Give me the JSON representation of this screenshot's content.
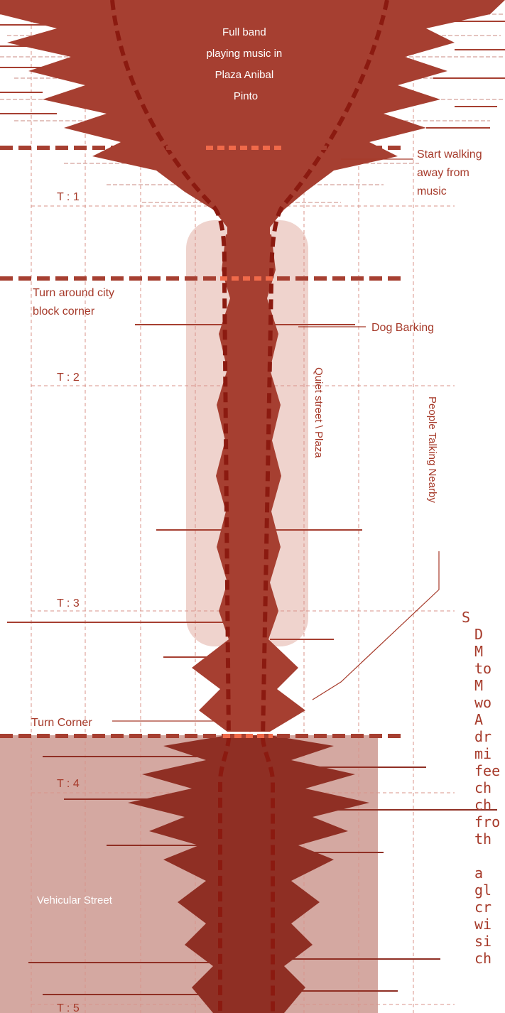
{
  "colors": {
    "wave": "#a63f31",
    "wave_dark": "#8a2a20",
    "guide": "#8b1a10",
    "highlight": "#f06a4a",
    "label": "#a63a2a",
    "grid": "#d9938a",
    "vehicular": "#d4a8a1",
    "plaza_fill": "#e9c2bb"
  },
  "labels": {
    "band": [
      "Full band",
      "playing music in",
      "Plaza Anibal",
      "Pinto"
    ],
    "start_walking": [
      "Start walking",
      "away from",
      "music"
    ],
    "turn_block": [
      "Turn around city",
      "block corner"
    ],
    "dog": "Dog Barking",
    "quiet": "Quiet street \\ Plaza",
    "people": "People Talking Nearby",
    "turn_corner": "Turn Corner",
    "vehicular": "Vehicular Street"
  },
  "time_markers": [
    "T : 1",
    "T : 2",
    "T : 3",
    "T : 4",
    "T : 5"
  ],
  "handwriting": [
    "S",
    "D",
    "M",
    "to",
    "M",
    "wo",
    "A",
    "dr",
    "mi",
    "fee",
    "ch",
    "ch",
    "fro",
    "th",
    "",
    "a",
    "gl",
    "cr",
    "wi",
    "si",
    "ch"
  ]
}
